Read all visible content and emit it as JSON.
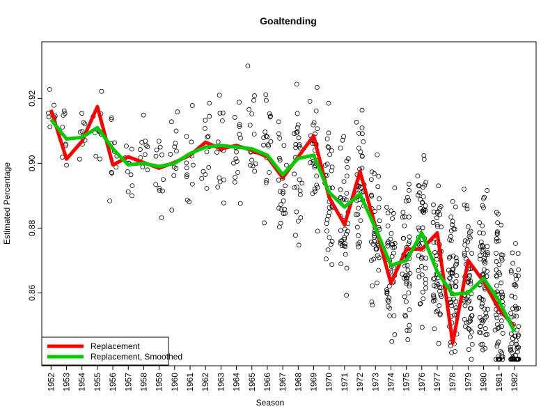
{
  "chart_data": {
    "type": "line",
    "title": "Goaltending",
    "xlabel": "Season",
    "ylabel": "Estimated Percentage",
    "x": [
      1952,
      1953,
      1954,
      1955,
      1956,
      1957,
      1958,
      1959,
      1960,
      1961,
      1962,
      1963,
      1964,
      1965,
      1966,
      1967,
      1968,
      1969,
      1970,
      1971,
      1972,
      1973,
      1974,
      1975,
      1976,
      1977,
      1978,
      1979,
      1980,
      1981,
      1982
    ],
    "xlim": [
      1951.4,
      1983.4
    ],
    "ylim": [
      0.8375,
      0.9375
    ],
    "yticks": [
      0.86,
      0.88,
      0.9,
      0.92
    ],
    "ytick_labels": [
      "0.86",
      "0.88",
      "0.90",
      "0.92"
    ],
    "series": [
      {
        "name": "Replacement",
        "color": "#ff0000",
        "values": [
          0.9165,
          0.9013,
          0.9068,
          0.9175,
          0.8995,
          0.902,
          0.9002,
          0.8985,
          0.9003,
          0.9025,
          0.9065,
          0.9045,
          0.9055,
          0.904,
          0.902,
          0.8955,
          0.902,
          0.9085,
          0.8895,
          0.881,
          0.8975,
          0.8805,
          0.863,
          0.8735,
          0.8735,
          0.8785,
          0.8445,
          0.87,
          0.8635,
          0.855,
          0.8495
        ]
      },
      {
        "name": "Replacement, Smoothed",
        "color": "#00cd00",
        "values": [
          0.9135,
          0.9075,
          0.908,
          0.911,
          0.9045,
          0.8995,
          0.9,
          0.899,
          0.9,
          0.903,
          0.905,
          0.9055,
          0.905,
          0.9045,
          0.9025,
          0.8965,
          0.9015,
          0.9025,
          0.891,
          0.8865,
          0.8905,
          0.88,
          0.8685,
          0.87,
          0.8785,
          0.8665,
          0.8595,
          0.86,
          0.8645,
          0.8575,
          0.848
        ]
      }
    ],
    "scatter_note": "open circles per season showing individual goaltender estimates",
    "legend_position": "bottom-left",
    "grid": false
  }
}
